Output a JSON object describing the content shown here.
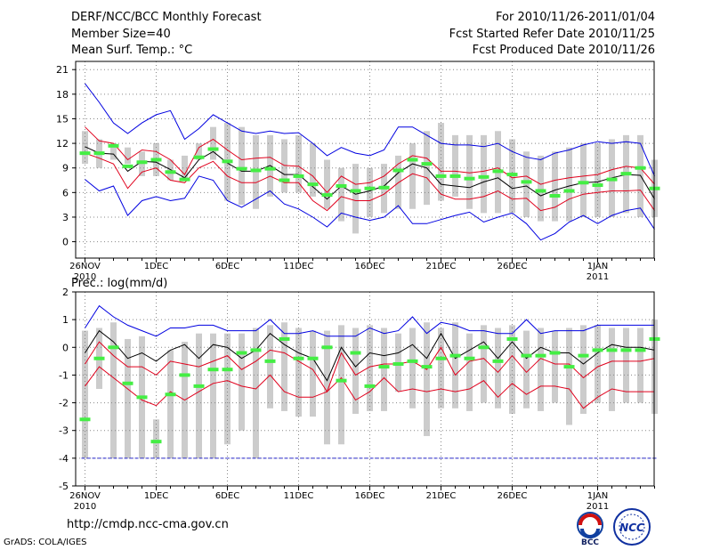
{
  "header": {
    "title": "DERF/NCC/BCC Monthly Forecast",
    "member_size": "Member Size=40",
    "variable": "Mean Surf. Temp.: °C",
    "period": "For 2010/11/26-2011/01/04",
    "refer_date": "Fcst Started Refer Date 2010/11/25",
    "produced_date": "Fcst Produced Date 2010/11/26"
  },
  "footer": {
    "url": "http://cmdp.ncc-cma.gov.cn",
    "grads": "GrADS: COLA/IGES",
    "logo_bcc_text": "BCC",
    "logo_ncc_text": "NCC"
  },
  "colors": {
    "box": "#cccccc",
    "median": "#000000",
    "inner": "#e0001c",
    "outer": "#0000e0",
    "obs": "#44ee44",
    "grid": "#888888",
    "baseline": "#2a2ad0"
  },
  "chart_data": [
    {
      "type": "box-ensemble",
      "title": "Mean Surf. Temp.: °C",
      "ylim": [
        -2,
        22
      ],
      "yticks": [
        0,
        3,
        6,
        9,
        12,
        15,
        18,
        21
      ],
      "xticks": [
        {
          "day": 0,
          "label": "26NOV",
          "sub": "2010"
        },
        {
          "day": 5,
          "label": "1DEC",
          "sub": ""
        },
        {
          "day": 10,
          "label": "6DEC",
          "sub": ""
        },
        {
          "day": 15,
          "label": "11DEC",
          "sub": ""
        },
        {
          "day": 20,
          "label": "16DEC",
          "sub": ""
        },
        {
          "day": 25,
          "label": "21DEC",
          "sub": ""
        },
        {
          "day": 30,
          "label": "26DEC",
          "sub": ""
        },
        {
          "day": 36,
          "label": "1JAN",
          "sub": "2011"
        }
      ],
      "box_low": [
        9.5,
        9,
        10,
        9.5,
        8,
        8,
        7.5,
        7.5,
        10,
        10,
        5,
        4.5,
        4,
        5.5,
        6,
        6,
        5.5,
        4,
        2.5,
        1,
        3,
        3.5,
        4,
        4,
        4.5,
        5,
        5.5,
        4,
        3.5,
        3.5,
        3.5,
        3,
        2.5,
        2.5,
        2.5,
        3,
        3,
        3,
        3.5,
        3,
        3
      ],
      "box_high": [
        13.5,
        12.5,
        12,
        11.5,
        11,
        12,
        10,
        10.5,
        12,
        14,
        14.5,
        14,
        13,
        13,
        12.5,
        13,
        12,
        10,
        9,
        9.5,
        9,
        9.5,
        10.5,
        12,
        13.5,
        14.5,
        13,
        13,
        13,
        13.5,
        12.5,
        11,
        10.5,
        11,
        11.5,
        12,
        12,
        12.5,
        13,
        13,
        10
      ],
      "median": [
        11.6,
        10.8,
        10.7,
        8.6,
        9.8,
        9.7,
        8.8,
        7.8,
        10,
        11,
        9.6,
        8.6,
        8.6,
        9.3,
        8.2,
        8.2,
        6.7,
        5.2,
        6.8,
        5.8,
        6.2,
        6.8,
        8.4,
        9.5,
        9,
        7,
        6.8,
        6.6,
        7.3,
        7.8,
        6.5,
        6.8,
        5.6,
        6.3,
        6.8,
        7.2,
        7.3,
        7.8,
        8.2,
        8.1,
        5.2
      ],
      "inner_high": [
        14,
        12.3,
        12,
        10,
        11.2,
        11,
        10,
        8.2,
        11.5,
        12.5,
        11.2,
        10,
        10.2,
        10.3,
        9.3,
        9.2,
        8,
        6,
        8,
        7,
        7.2,
        8,
        9.5,
        10.5,
        10.2,
        8.6,
        8.6,
        8.4,
        8.6,
        9,
        7.8,
        8,
        7,
        7.5,
        7.8,
        8,
        8.2,
        8.8,
        9.2,
        9,
        7
      ],
      "inner_low": [
        10.8,
        10.2,
        9.5,
        6.5,
        8.5,
        9,
        7.5,
        7.2,
        9,
        9.8,
        8,
        7.2,
        7.2,
        8,
        7.2,
        7.2,
        5,
        3.8,
        5.5,
        5,
        5,
        5.8,
        7.2,
        8.3,
        7.8,
        5.8,
        5.2,
        5.2,
        5.5,
        6.2,
        5.2,
        5.3,
        3.8,
        4.2,
        5.2,
        5.8,
        6,
        6.2,
        6.2,
        6.3,
        3.8
      ],
      "outer_high": [
        19.3,
        17,
        14.5,
        13.2,
        14.5,
        15.5,
        16,
        12.5,
        13.8,
        15.5,
        14.5,
        13.5,
        13.2,
        13.5,
        13.2,
        13.3,
        12,
        10.5,
        11.5,
        10.8,
        10.5,
        11.2,
        14,
        14,
        13,
        12,
        11.8,
        11.8,
        11.6,
        12,
        11,
        10.3,
        10,
        10.8,
        11.2,
        11.8,
        12.2,
        12,
        12.2,
        12,
        8
      ],
      "outer_low": [
        7.6,
        6.2,
        6.8,
        3.2,
        5,
        5.5,
        5,
        5.3,
        8,
        7.5,
        5,
        4.2,
        5.2,
        6.2,
        4.6,
        4,
        3,
        1.8,
        3.5,
        3,
        2.6,
        3,
        4.4,
        2.2,
        2.2,
        2.7,
        3.2,
        3.6,
        2.4,
        3,
        3.5,
        2.2,
        0.2,
        1,
        2.4,
        3.2,
        2.2,
        3.2,
        3.8,
        4.1,
        1.5
      ],
      "observed": [
        10.8,
        10.8,
        11.7,
        9.2,
        9.7,
        10,
        8.5,
        7.6,
        10.3,
        11.3,
        9.8,
        8.9,
        8.7,
        8.9,
        7.5,
        8,
        7,
        5.7,
        6.8,
        6.2,
        6.5,
        6.6,
        8.7,
        10,
        9.5,
        8,
        8,
        7.7,
        7.9,
        8.6,
        8.2,
        7.3,
        6.2,
        5.6,
        6.2,
        7.2,
        6.9,
        7.6,
        8.3,
        9,
        6.5
      ]
    },
    {
      "type": "box-ensemble",
      "title": "Prec.: log(mm/d)",
      "ylim": [
        -5,
        2
      ],
      "yticks": [
        -5,
        -4,
        -3,
        -2,
        -1,
        0,
        1,
        2
      ],
      "xticks": [
        {
          "day": 0,
          "label": "26NOV",
          "sub": "2010"
        },
        {
          "day": 5,
          "label": "1DEC",
          "sub": ""
        },
        {
          "day": 10,
          "label": "6DEC",
          "sub": ""
        },
        {
          "day": 15,
          "label": "11DEC",
          "sub": ""
        },
        {
          "day": 20,
          "label": "16DEC",
          "sub": ""
        },
        {
          "day": 25,
          "label": "21DEC",
          "sub": ""
        },
        {
          "day": 30,
          "label": "26DEC",
          "sub": ""
        },
        {
          "day": 36,
          "label": "1JAN",
          "sub": "2011"
        }
      ],
      "box_low": [
        -4,
        -1.5,
        -4,
        -4,
        -4,
        -4,
        -4,
        -4,
        -4,
        -4,
        -3.5,
        -3,
        -4,
        -2.2,
        -2.3,
        -2.5,
        -2.5,
        -3.5,
        -3.5,
        -2.4,
        -2.3,
        -2.3,
        -1.6,
        -2.2,
        -3.2,
        -2.2,
        -2.2,
        -2.3,
        -2,
        -2.2,
        -2.4,
        -2.2,
        -2.3,
        -2,
        -2.8,
        -2.4,
        -2,
        -2.3,
        -2,
        -2,
        -2.4
      ],
      "box_high": [
        0.6,
        0.7,
        0.9,
        0.3,
        0.4,
        -2.6,
        -0.1,
        0.2,
        0.5,
        0.5,
        0.5,
        0.5,
        0.7,
        0.8,
        0.9,
        0.7,
        0.6,
        0.6,
        0.8,
        0.7,
        0.8,
        0.7,
        0.5,
        0.7,
        0.9,
        0.7,
        0.9,
        0.5,
        0.8,
        0.7,
        0.8,
        0.6,
        0.7,
        0.6,
        0.7,
        0.8,
        0.8,
        0.7,
        0.7,
        0.7,
        1
      ],
      "median": [
        -0.2,
        0.6,
        0.2,
        -0.4,
        -0.2,
        -0.5,
        -0.1,
        0.1,
        -0.4,
        0.1,
        0,
        -0.4,
        -0.1,
        0.5,
        0.1,
        -0.2,
        -0.4,
        -1.2,
        0,
        -0.7,
        -0.2,
        -0.3,
        -0.2,
        0.1,
        -0.4,
        0.5,
        -0.4,
        -0.1,
        0.2,
        -0.4,
        0.2,
        -0.4,
        0,
        -0.2,
        -0.2,
        -0.6,
        -0.2,
        0.1,
        0,
        0,
        -0.1
      ],
      "inner_high": [
        -0.6,
        0.2,
        -0.3,
        -0.7,
        -0.7,
        -1,
        -0.5,
        -0.6,
        -0.7,
        -0.5,
        -0.3,
        -0.8,
        -0.5,
        -0.1,
        -0.2,
        -0.5,
        -0.8,
        -1.6,
        -0.2,
        -1,
        -0.7,
        -0.6,
        -0.6,
        -0.5,
        -0.8,
        0,
        -1,
        -0.5,
        -0.4,
        -0.9,
        -0.3,
        -0.9,
        -0.4,
        -0.6,
        -0.6,
        -1.1,
        -0.7,
        -0.5,
        -0.5,
        -0.5,
        -0.4
      ],
      "inner_low": [
        -1.4,
        -0.7,
        -1.1,
        -1.5,
        -1.9,
        -2.1,
        -1.6,
        -1.9,
        -1.6,
        -1.3,
        -1.2,
        -1.4,
        -1.5,
        -1,
        -1.6,
        -1.8,
        -1.8,
        -1.6,
        -1.1,
        -1.9,
        -1.6,
        -1.1,
        -1.6,
        -1.5,
        -1.6,
        -1.5,
        -1.6,
        -1.5,
        -1.2,
        -1.8,
        -1.3,
        -1.7,
        -1.4,
        -1.4,
        -1.5,
        -2.2,
        -1.8,
        -1.5,
        -1.6,
        -1.6,
        -1.6
      ],
      "outer_high": [
        0.7,
        1.5,
        1.1,
        0.8,
        0.6,
        0.4,
        0.7,
        0.7,
        0.8,
        0.8,
        0.6,
        0.6,
        0.6,
        1,
        0.5,
        0.5,
        0.6,
        0.4,
        0.4,
        0.4,
        0.7,
        0.5,
        0.6,
        1.1,
        0.5,
        0.9,
        0.8,
        0.6,
        0.6,
        0.5,
        0.5,
        1,
        0.5,
        0.6,
        0.6,
        0.6,
        0.8,
        0.8,
        0.8,
        0.8,
        0.8
      ],
      "outer_low": [
        -4,
        -4,
        -4,
        -4,
        -4,
        -4,
        -4,
        -4,
        -4,
        -4,
        -4,
        -4,
        -4,
        -4,
        -4,
        -4,
        -4,
        -4,
        -4,
        -4,
        -4,
        -4,
        -4,
        -4,
        -4,
        -4,
        -4,
        -4,
        -4,
        -4,
        -4,
        -4,
        -4,
        -4,
        -4,
        -4,
        -4,
        -4,
        -4,
        -4,
        -4
      ],
      "observed": [
        -2.6,
        -0.4,
        0,
        -1.3,
        -1.8,
        -3.4,
        -1.7,
        -1,
        -1.4,
        -0.8,
        -0.8,
        -0.2,
        -0.1,
        -0.5,
        0.3,
        -0.4,
        -0.4,
        0,
        -1.2,
        -0.2,
        -1.4,
        -0.7,
        -0.6,
        -0.5,
        -0.7,
        -0.4,
        -0.3,
        -0.4,
        0,
        -0.5,
        0.3,
        -0.3,
        -0.3,
        -0.2,
        -0.7,
        -0.3,
        -0.1,
        -0.1,
        -0.1,
        -0.1,
        0.3
      ]
    }
  ]
}
